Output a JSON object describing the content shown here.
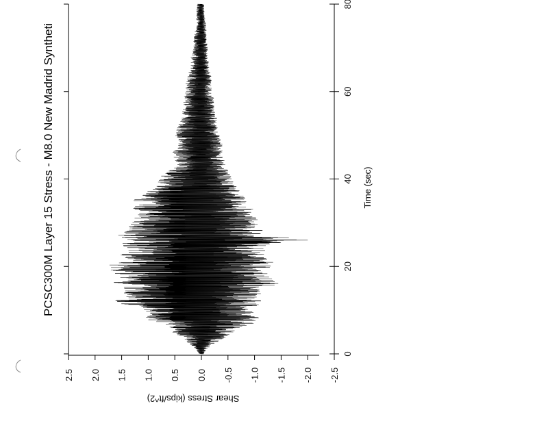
{
  "chart_data": {
    "type": "line",
    "title": "PCSC300M Layer 15 Stress - M8.0 New Madrid Syntheti",
    "xlabel": "Time (sec)",
    "ylabel": "Shear Stress (kips/ft^2)",
    "xlim": [
      0,
      80
    ],
    "ylim": [
      -2.5,
      2.5
    ],
    "x_ticks": [
      "0",
      "20",
      "40",
      "60",
      "80"
    ],
    "y_ticks": [
      "2.5",
      "2.0",
      "1.5",
      "1.0",
      "0.5",
      "0.0",
      "-0.5",
      "-1.0",
      "-1.5",
      "-2.0",
      "-2.5"
    ],
    "orientation": "rotated-90",
    "series": [
      {
        "color": "#000000",
        "envelope": {
          "t": [
            0,
            1,
            2,
            3,
            4,
            5,
            6,
            7,
            8,
            9,
            10,
            11,
            12,
            13,
            14,
            15,
            16,
            17,
            18,
            19,
            20,
            21,
            22,
            23,
            24,
            25,
            26,
            27,
            28,
            29,
            30,
            31,
            32,
            33,
            34,
            35,
            36,
            37,
            38,
            39,
            40,
            42,
            44,
            46,
            48,
            50,
            52,
            54,
            56,
            58,
            60,
            62,
            64,
            66,
            68,
            70,
            72,
            74,
            76,
            78,
            80
          ],
          "max": [
            0.05,
            0.1,
            0.2,
            0.3,
            0.4,
            0.55,
            0.6,
            0.7,
            1.1,
            1.0,
            1.1,
            1.2,
            1.95,
            1.4,
            1.6,
            1.5,
            1.75,
            1.5,
            1.6,
            1.7,
            1.8,
            1.6,
            1.5,
            1.6,
            1.4,
            1.55,
            1.45,
            1.6,
            1.5,
            1.4,
            1.4,
            1.3,
            1.2,
            1.3,
            1.25,
            1.3,
            1.2,
            1.1,
            0.9,
            0.8,
            0.85,
            0.6,
            0.5,
            0.55,
            0.45,
            0.5,
            0.45,
            0.4,
            0.35,
            0.35,
            0.3,
            0.3,
            0.25,
            0.2,
            0.2,
            0.15,
            0.15,
            0.12,
            0.1,
            0.1,
            0.08
          ],
          "min": [
            -0.05,
            -0.1,
            -0.2,
            -0.35,
            -0.5,
            -0.6,
            -0.75,
            -1.0,
            -1.1,
            -1.05,
            -1.0,
            -1.1,
            -1.15,
            -1.1,
            -1.15,
            -1.3,
            -1.6,
            -1.35,
            -1.3,
            -1.25,
            -1.3,
            -1.5,
            -1.2,
            -1.25,
            -1.2,
            -1.3,
            -2.2,
            -1.25,
            -1.2,
            -1.1,
            -1.1,
            -1.05,
            -0.95,
            -1.0,
            -0.85,
            -0.9,
            -0.8,
            -0.75,
            -0.7,
            -0.6,
            -0.6,
            -0.5,
            -0.45,
            -0.4,
            -0.4,
            -0.35,
            -0.3,
            -0.3,
            -0.25,
            -0.25,
            -0.2,
            -0.2,
            -0.18,
            -0.15,
            -0.12,
            -0.12,
            -0.1,
            -0.1,
            -0.08,
            -0.06,
            -0.05
          ]
        }
      }
    ]
  }
}
